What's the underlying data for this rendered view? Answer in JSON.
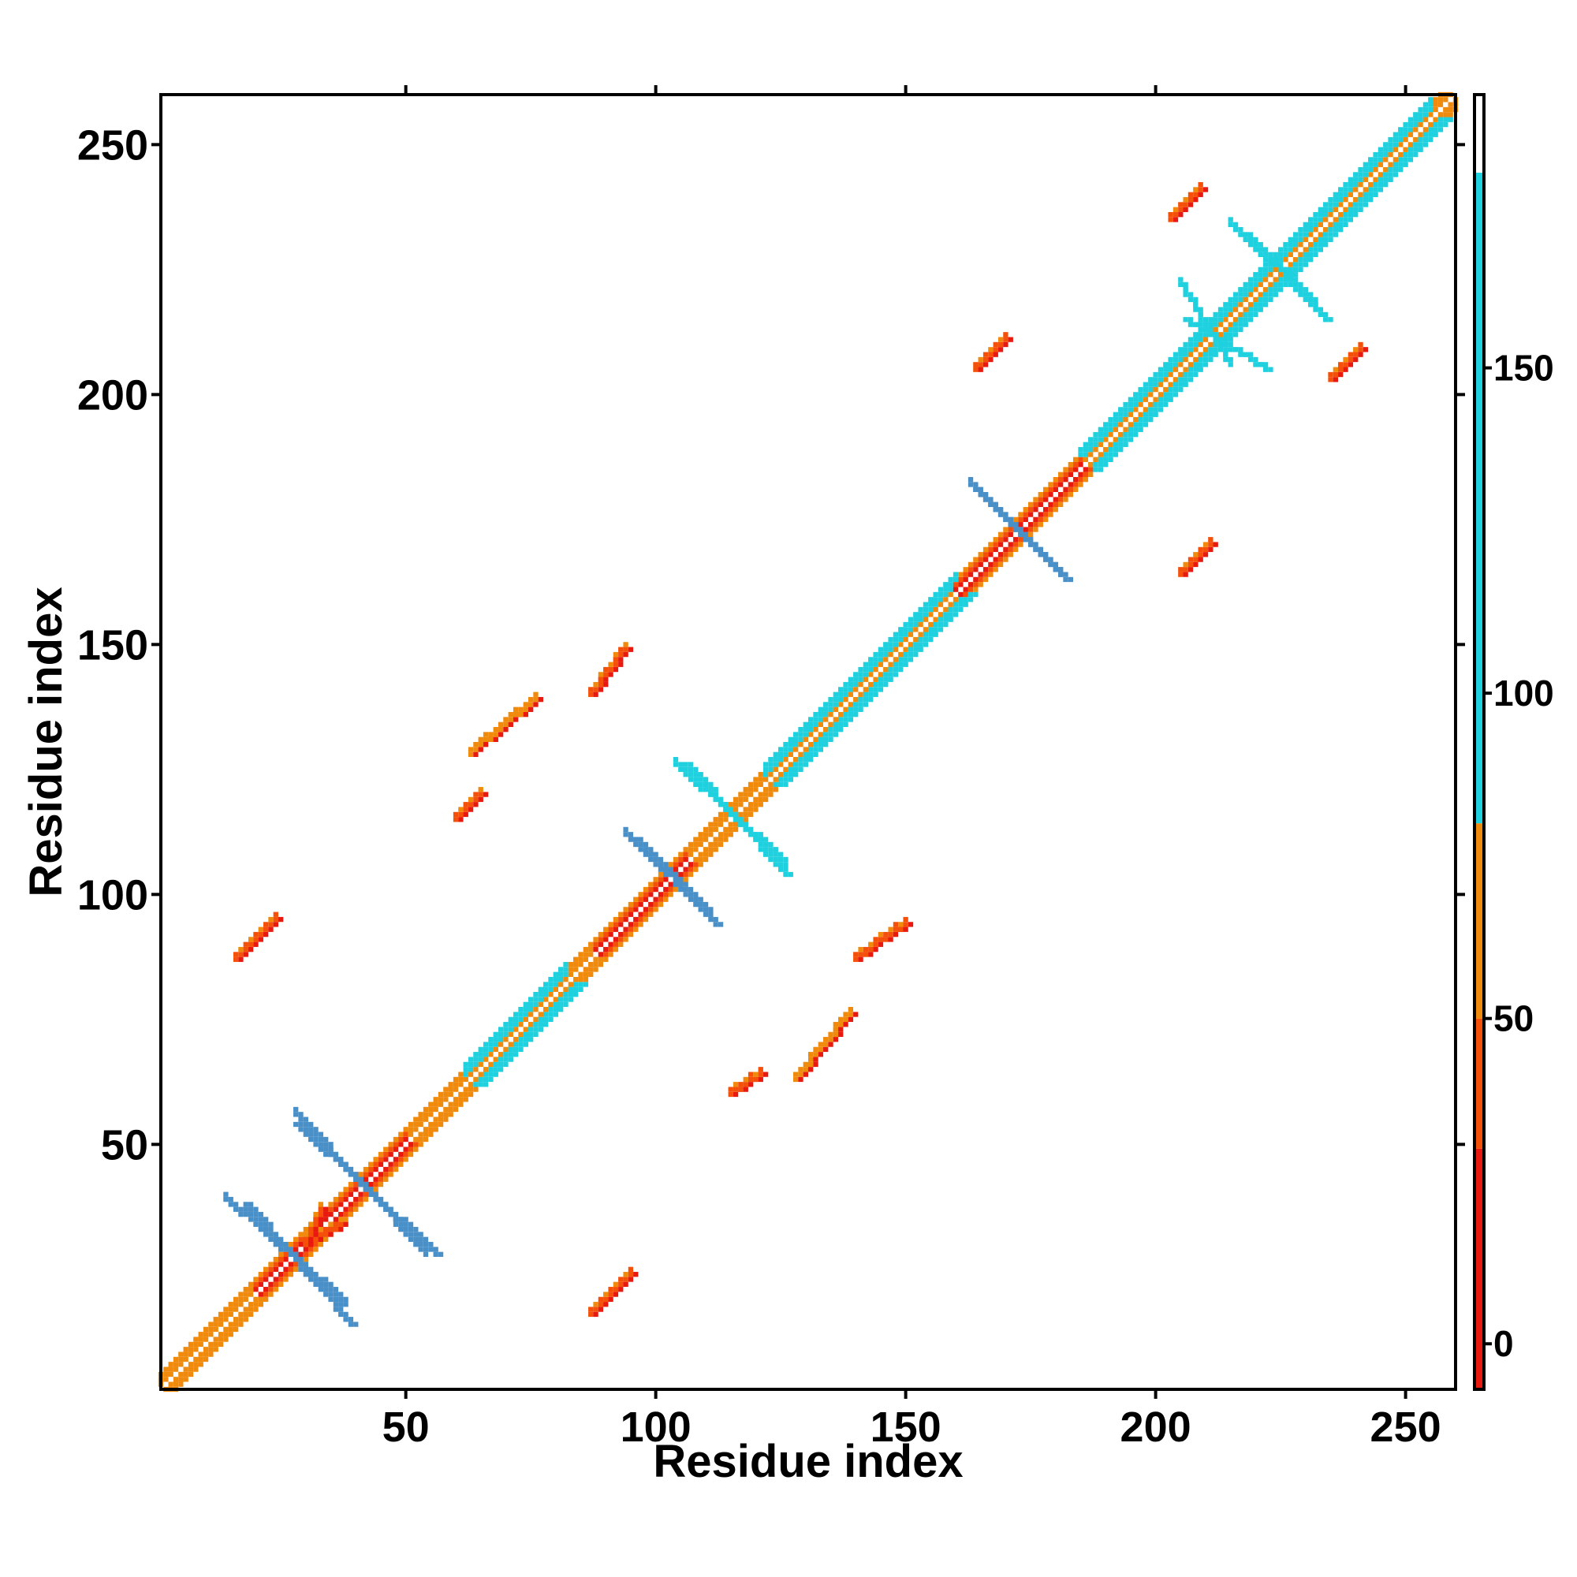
{
  "chart_data": {
    "type": "heatmap",
    "title": "",
    "xlabel": "Residue index",
    "ylabel": "Residue index",
    "xlim": [
      1,
      260
    ],
    "ylim": [
      1,
      260
    ],
    "x_ticks": [
      50,
      100,
      150,
      200,
      250
    ],
    "y_ticks": [
      50,
      100,
      150,
      200,
      250
    ],
    "colorbar": {
      "ticks": [
        0,
        50,
        100,
        150
      ],
      "range": [
        -7,
        192
      ],
      "bands": [
        {
          "from": -7,
          "to": 30,
          "color": "#e8190f"
        },
        {
          "from": 30,
          "to": 50,
          "color": "#f5500a"
        },
        {
          "from": 50,
          "to": 80,
          "color": "#f08a0c"
        },
        {
          "from": 80,
          "to": 180,
          "color": "#1fd0de"
        },
        {
          "from": 180,
          "to": 192,
          "color": "#ffffff"
        }
      ]
    },
    "palette": {
      "red": "#e8190f",
      "red_orange": "#f5500a",
      "orange": "#f08a0c",
      "cyan": "#1fd0de",
      "steel_blue": "#4a90c8"
    },
    "features": [
      {
        "kind": "diagonal",
        "from": 1,
        "to": 260
      },
      {
        "kind": "antiparallel",
        "from": [
          18,
          38
        ],
        "to": [
          39,
          14
        ],
        "color": "steel_blue"
      },
      {
        "kind": "antiparallel",
        "from": [
          28,
          54
        ],
        "to": [
          56,
          28
        ],
        "color": "steel_blue"
      },
      {
        "kind": "antiparallel",
        "from": [
          96,
          111
        ],
        "to": [
          112,
          94
        ],
        "color": "steel_blue"
      },
      {
        "kind": "antiparallel",
        "from": [
          106,
          126
        ],
        "to": [
          126,
          104
        ],
        "color": "cyan"
      },
      {
        "kind": "antiparallel",
        "from": [
          164,
          181
        ],
        "to": [
          182,
          163
        ],
        "color": "steel_blue"
      },
      {
        "kind": "antiparallel",
        "from": [
          206,
          215
        ],
        "to": [
          222,
          205
        ],
        "color": "cyan"
      },
      {
        "kind": "antiparallel",
        "from": [
          218,
          232
        ],
        "to": [
          234,
          215
        ],
        "color": "cyan"
      },
      {
        "kind": "parallel",
        "from": [
          16,
          87
        ],
        "to": [
          24,
          95
        ],
        "color": "red_orange"
      },
      {
        "kind": "parallel",
        "from": [
          87,
          16
        ],
        "to": [
          95,
          24
        ],
        "color": "red_orange"
      },
      {
        "kind": "parallel",
        "from": [
          60,
          115
        ],
        "to": [
          65,
          120
        ],
        "color": "red_orange"
      },
      {
        "kind": "parallel",
        "from": [
          115,
          60
        ],
        "to": [
          121,
          64
        ],
        "color": "red_orange"
      },
      {
        "kind": "parallel",
        "from": [
          87,
          140
        ],
        "to": [
          94,
          149
        ],
        "color": "red_orange"
      },
      {
        "kind": "parallel",
        "from": [
          140,
          87
        ],
        "to": [
          150,
          94
        ],
        "color": "red_orange"
      },
      {
        "kind": "parallel",
        "from": [
          164,
          205
        ],
        "to": [
          170,
          211
        ],
        "color": "red_orange"
      },
      {
        "kind": "parallel",
        "from": [
          205,
          164
        ],
        "to": [
          211,
          170
        ],
        "color": "red_orange"
      },
      {
        "kind": "parallel",
        "from": [
          203,
          235
        ],
        "to": [
          209,
          241
        ],
        "color": "red_orange"
      },
      {
        "kind": "parallel",
        "from": [
          235,
          203
        ],
        "to": [
          241,
          209
        ],
        "color": "red_orange"
      },
      {
        "kind": "parallel",
        "from": [
          63,
          128
        ],
        "to": [
          76,
          139
        ],
        "color": "orange"
      },
      {
        "kind": "parallel",
        "from": [
          128,
          63
        ],
        "to": [
          139,
          76
        ],
        "color": "orange"
      },
      {
        "kind": "parallel",
        "from": [
          30,
          30
        ],
        "to": [
          37,
          34
        ],
        "color": "red_orange"
      },
      {
        "kind": "parallel",
        "from": [
          30,
          30
        ],
        "to": [
          33,
          37
        ],
        "color": "red_orange"
      }
    ]
  }
}
